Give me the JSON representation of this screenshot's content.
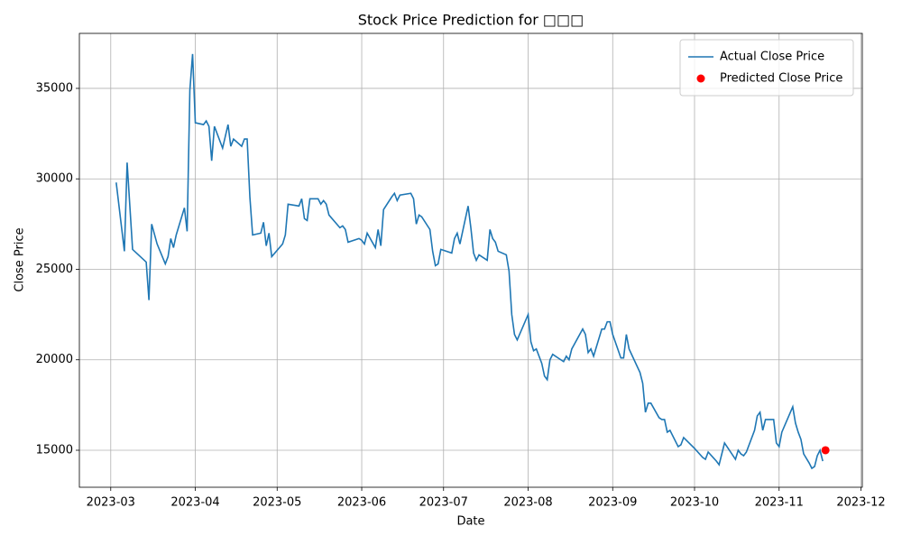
{
  "chart_data": {
    "type": "line",
    "title": "Stock Price Prediction for □□□",
    "xlabel": "Date",
    "ylabel": "Close Price",
    "xlim": [
      -11.5,
      275.5
    ],
    "xticks": [
      {
        "value": 0,
        "label": "2023-03"
      },
      {
        "value": 31,
        "label": "2023-04"
      },
      {
        "value": 61,
        "label": "2023-05"
      },
      {
        "value": 92,
        "label": "2023-06"
      },
      {
        "value": 122,
        "label": "2023-07"
      },
      {
        "value": 153,
        "label": "2023-08"
      },
      {
        "value": 184,
        "label": "2023-09"
      },
      {
        "value": 214,
        "label": "2023-10"
      },
      {
        "value": 245,
        "label": "2023-11"
      },
      {
        "value": 275,
        "label": "2023-12"
      }
    ],
    "ylim": [
      12955,
      38040
    ],
    "yticks": [
      15000,
      20000,
      25000,
      30000,
      35000
    ],
    "grid": true,
    "legend": "upper right",
    "series": [
      {
        "name": "Actual Close Price",
        "color": "#1f77b4",
        "style": "line",
        "x": [
          2,
          5,
          6,
          8,
          13,
          14,
          15,
          17,
          20,
          21,
          22,
          23,
          24,
          27,
          28,
          29,
          30,
          31,
          34,
          35,
          36,
          37,
          38,
          41,
          43,
          44,
          45,
          48,
          49,
          50,
          51,
          52,
          55,
          56,
          57,
          58,
          59,
          63,
          64,
          65,
          69,
          70,
          71,
          72,
          73,
          76,
          77,
          78,
          79,
          80,
          84,
          85,
          86,
          87,
          91,
          92,
          93,
          94,
          97,
          98,
          99,
          100,
          103,
          104,
          105,
          106,
          110,
          111,
          112,
          113,
          114,
          117,
          118,
          119,
          120,
          121,
          125,
          126,
          127,
          128,
          131,
          132,
          133,
          134,
          135,
          138,
          139,
          140,
          141,
          142,
          145,
          146,
          147,
          148,
          149,
          153,
          154,
          155,
          156,
          158,
          159,
          160,
          161,
          162,
          164,
          166,
          167,
          168,
          169,
          173,
          174,
          175,
          176,
          177,
          180,
          181,
          182,
          183,
          184,
          187,
          188,
          189,
          190,
          194,
          195,
          196,
          197,
          198,
          201,
          202,
          203,
          204,
          205,
          208,
          209,
          210,
          214,
          217,
          218,
          219,
          222,
          223,
          224,
          225,
          229,
          230,
          231,
          232,
          233,
          236,
          237,
          238,
          239,
          240,
          243,
          244,
          245,
          246,
          250,
          251,
          252,
          253,
          254,
          256,
          257,
          258,
          259,
          260,
          261
        ],
        "values": [
          29800,
          26000,
          30900,
          26100,
          25400,
          23300,
          27500,
          26400,
          25300,
          25700,
          26700,
          26200,
          26900,
          28400,
          27100,
          34900,
          36900,
          33100,
          33000,
          33200,
          32900,
          31000,
          32900,
          31700,
          33000,
          31800,
          32200,
          31800,
          32200,
          32200,
          29000,
          26900,
          27000,
          27600,
          26300,
          27000,
          25700,
          26400,
          26900,
          28600,
          28500,
          28900,
          27800,
          27700,
          28900,
          28900,
          28600,
          28800,
          28600,
          28000,
          27300,
          27400,
          27200,
          26500,
          26700,
          26600,
          26400,
          27000,
          26200,
          27200,
          26300,
          28300,
          29000,
          29200,
          28800,
          29100,
          29200,
          28900,
          27500,
          28000,
          27900,
          27200,
          26000,
          25200,
          25300,
          26100,
          25900,
          26700,
          27000,
          26400,
          28500,
          27300,
          25900,
          25500,
          25800,
          25500,
          27200,
          26700,
          26500,
          26000,
          25800,
          24900,
          22500,
          21400,
          21100,
          22500,
          21000,
          20500,
          20600,
          19800,
          19100,
          18900,
          20000,
          20300,
          20100,
          19900,
          20200,
          20000,
          20600,
          21700,
          21400,
          20400,
          20600,
          20200,
          21700,
          21700,
          22100,
          22100,
          21400,
          20100,
          20100,
          21400,
          20600,
          19300,
          18700,
          17100,
          17600,
          17600,
          16800,
          16700,
          16700,
          16000,
          16100,
          15200,
          15300,
          15700,
          15100,
          14600,
          14500,
          14900,
          14400,
          14200,
          14800,
          15400,
          14500,
          15000,
          14800,
          14700,
          14900,
          16100,
          16900,
          17100,
          16100,
          16700,
          16700,
          15400,
          15200,
          16000,
          17400,
          16500,
          16000,
          15600,
          14800,
          14300,
          14000,
          14100,
          14700,
          15000,
          14400
        ]
      },
      {
        "name": "Predicted Close Price",
        "color": "#ff0000",
        "style": "marker",
        "x": [
          262
        ],
        "values": [
          15000
        ]
      }
    ]
  }
}
